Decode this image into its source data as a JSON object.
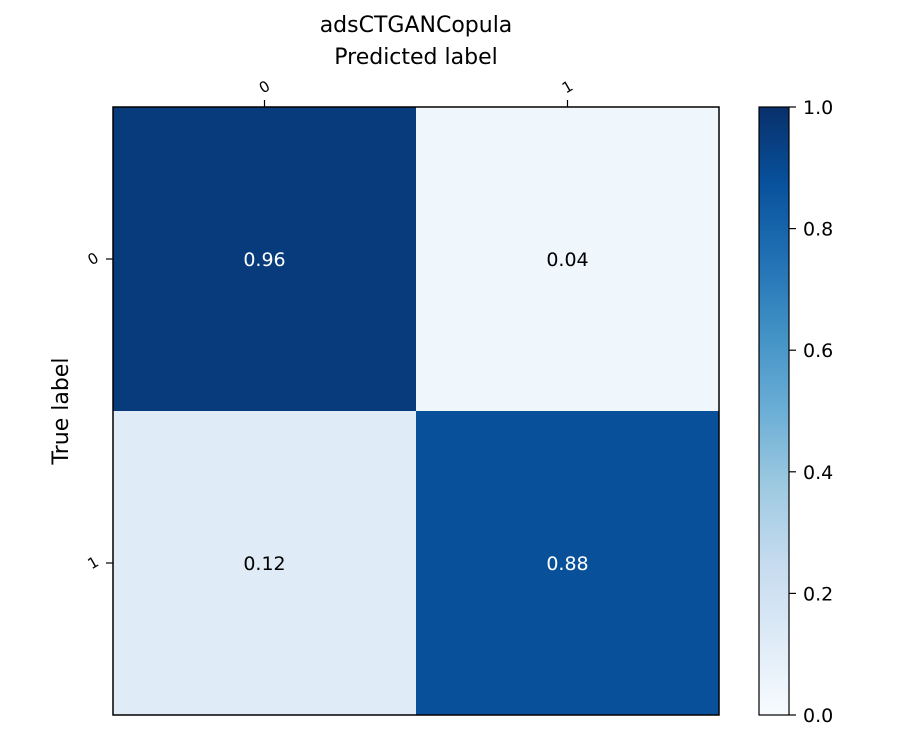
{
  "chart_data": {
    "type": "heatmap",
    "title": "adsCTGANCopula",
    "xlabel": "Predicted label",
    "ylabel": "True label",
    "x_categories": [
      "0",
      "1"
    ],
    "y_categories": [
      "0",
      "1"
    ],
    "matrix": [
      [
        0.96,
        0.04
      ],
      [
        0.12,
        0.88
      ]
    ],
    "cell_labels": [
      [
        "0.96",
        "0.04"
      ],
      [
        "0.12",
        "0.88"
      ]
    ],
    "colorscale": "Blues",
    "colorbar": {
      "range": [
        0.0,
        1.0
      ],
      "ticks": [
        "0.0",
        "0.2",
        "0.4",
        "0.6",
        "0.8",
        "1.0"
      ]
    },
    "xaxis_position": "top",
    "grid": false
  }
}
